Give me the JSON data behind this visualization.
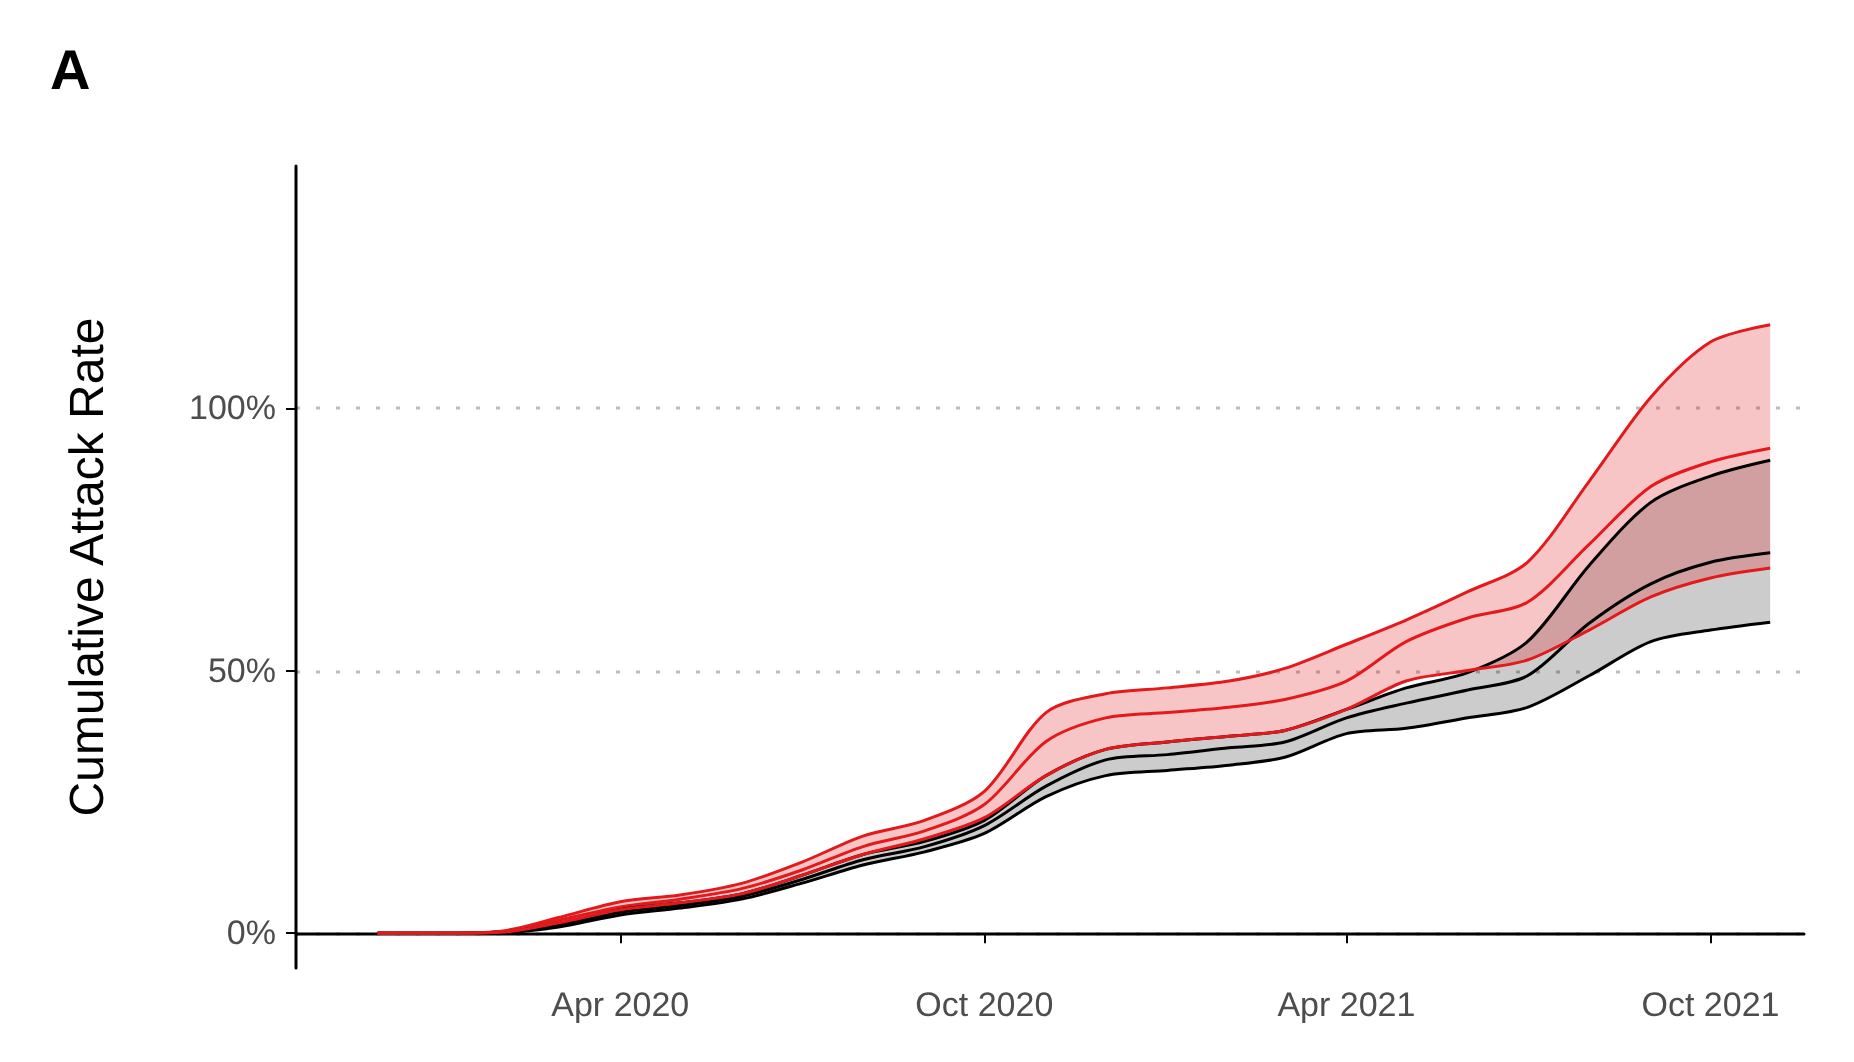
{
  "chart_data": {
    "type": "line",
    "title": "A",
    "ylabel": "Cumulative Attack Rate",
    "x": [
      "2019-12-01",
      "2020-01-01",
      "2020-02-01",
      "2020-03-01",
      "2020-04-01",
      "2020-05-01",
      "2020-06-01",
      "2020-07-01",
      "2020-08-01",
      "2020-09-01",
      "2020-10-01",
      "2020-11-01",
      "2020-12-01",
      "2021-01-01",
      "2021-02-01",
      "2021-03-01",
      "2021-04-01",
      "2021-05-01",
      "2021-06-01",
      "2021-07-01",
      "2021-08-01",
      "2021-09-01",
      "2021-10-01",
      "2021-10-31"
    ],
    "series": [
      {
        "color": "#000000",
        "values": [
          0,
          0,
          0.2,
          1.5,
          4,
          5.3,
          7,
          10.2,
          14,
          16.5,
          20.5,
          28,
          33,
          34,
          35.3,
          36.4,
          41,
          43.8,
          46.3,
          49,
          59,
          66.5,
          70.6,
          72.4
        ],
        "lower": [
          0,
          0,
          0.1,
          1.2,
          3.5,
          4.8,
          6.5,
          9.5,
          13,
          15.5,
          19,
          26,
          30,
          31,
          32,
          33.5,
          38,
          39,
          41,
          43,
          49,
          55.5,
          57.7,
          59.2
        ],
        "upper": [
          0,
          0,
          0.3,
          1.8,
          4.5,
          5.8,
          7.5,
          11,
          15,
          17.5,
          21.5,
          30,
          35,
          36.4,
          37.5,
          38.6,
          42.6,
          46.7,
          49.6,
          55.5,
          70,
          82,
          87,
          90
        ]
      },
      {
        "color": "#e3191c",
        "values": [
          0,
          0,
          0.3,
          2.5,
          5,
          6.5,
          8.5,
          12,
          16.5,
          19.5,
          24.5,
          36.5,
          41,
          42,
          43,
          44.5,
          48,
          55.5,
          60,
          63,
          74,
          85,
          89.7,
          92.3
        ],
        "lower": [
          0,
          0,
          0.2,
          2,
          4.5,
          5.8,
          7.5,
          11,
          15,
          18,
          22,
          30,
          35,
          36.4,
          37.5,
          38.6,
          42.6,
          48,
          50,
          52,
          57.7,
          64,
          67.6,
          69.5
        ],
        "upper": [
          0,
          0,
          0.4,
          3,
          6,
          7.3,
          9.5,
          13.5,
          18.5,
          21.5,
          27,
          42,
          45.6,
          46.7,
          48,
          50.4,
          55,
          59.6,
          65,
          70.6,
          86,
          102,
          112.5,
          115.8
        ]
      },
      {
        "color": "#000000",
        "values": [
          0,
          0,
          0.1,
          1.2,
          3.5,
          4.8,
          6.5,
          9.5,
          13,
          15.5,
          19,
          26,
          30,
          31,
          32,
          33.5,
          38,
          39,
          41,
          43,
          49,
          55.5,
          57.7,
          59.2
        ]
      },
      {
        "color": "#000000",
        "values": [
          0,
          0,
          0.3,
          1.8,
          4.5,
          5.8,
          7.5,
          11,
          15,
          17.5,
          21.5,
          30,
          35,
          36.4,
          37.5,
          38.6,
          42.6,
          46.7,
          49.6,
          55.5,
          70,
          82,
          87,
          90
        ]
      },
      {
        "color": "#e3191c",
        "values": [
          0,
          0,
          0.2,
          2,
          4.5,
          5.8,
          7.5,
          11,
          15,
          18,
          22,
          30,
          35,
          36.4,
          37.5,
          38.6,
          42.6,
          48,
          50,
          52,
          57.7,
          64,
          67.6,
          69.5
        ]
      },
      {
        "color": "#e3191c",
        "values": [
          0,
          0,
          0.4,
          3,
          6,
          7.3,
          9.5,
          13.5,
          18.5,
          21.5,
          27,
          42,
          45.6,
          46.7,
          48,
          50.4,
          55,
          59.6,
          65,
          70.6,
          86,
          102,
          112.5,
          115.8
        ]
      }
    ],
    "xlim": [
      "2019-10-21",
      "2021-11-17"
    ],
    "xticks": [
      {
        "value": "2020-04-01",
        "label": "Apr 2020"
      },
      {
        "value": "2020-10-01",
        "label": "Oct 2020"
      },
      {
        "value": "2021-04-01",
        "label": "Apr 2021"
      },
      {
        "value": "2021-10-01",
        "label": "Oct 2021"
      }
    ],
    "ylim": [
      -6.6,
      146
    ],
    "yticks": [
      {
        "value": 0,
        "label": "0%"
      },
      {
        "value": 50,
        "label": "50%"
      },
      {
        "value": 100,
        "label": "100%"
      }
    ],
    "grid": "y",
    "line_style": "solid",
    "marker": "none"
  }
}
